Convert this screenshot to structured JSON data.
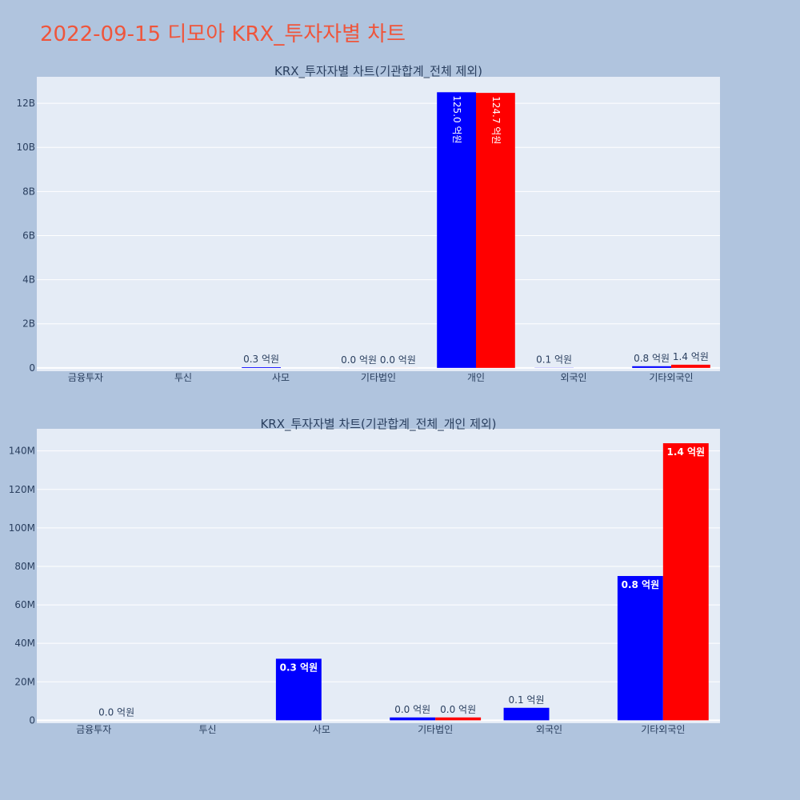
{
  "title": "2022-09-15 디모아 KRX_투자자별 차트",
  "colors": {
    "title": "#ef553b",
    "background": "#b0c4de",
    "plot_bg": "#e5ecf6",
    "grid": "#ffffff",
    "series_buy": "#0000ff",
    "series_sell": "#ff0000",
    "text": "#2a3f5f"
  },
  "chart_data": [
    {
      "type": "bar",
      "title": "KRX_투자자별 차트(기관합계_전체 제외)",
      "categories": [
        "금융투자",
        "투신",
        "사모",
        "기타법인",
        "개인",
        "외국인",
        "기타외국인"
      ],
      "ylim": [
        -150000000,
        13200000000
      ],
      "yticks": [
        0,
        2000000000,
        4000000000,
        6000000000,
        8000000000,
        10000000000,
        12000000000
      ],
      "ytick_labels": [
        "0",
        "2B",
        "4B",
        "6B",
        "8B",
        "10B",
        "12B"
      ],
      "grid": true,
      "series": [
        {
          "values": [
            0,
            0,
            32000000,
            1500000,
            12500000000,
            6500000,
            75000000
          ],
          "labels": [
            "",
            "",
            "0.3 억원",
            "0.0 억원",
            "125.0 억원",
            "0.1 억원",
            "0.8 억원"
          ]
        },
        {
          "values": [
            0,
            0,
            0,
            1500000,
            12470000000,
            0,
            144000000
          ],
          "labels": [
            "",
            "",
            "",
            "0.0 억원",
            "124.7 억원",
            "",
            "1.4 억원"
          ]
        }
      ]
    },
    {
      "type": "bar",
      "title": "KRX_투자자별 차트(기관합계_전체_개인 제외)",
      "categories": [
        "금융투자",
        "투신",
        "사모",
        "기타법인",
        "외국인",
        "기타외국인"
      ],
      "ylim": [
        -1500000,
        151500000
      ],
      "yticks": [
        0,
        20000000,
        40000000,
        60000000,
        80000000,
        100000000,
        120000000,
        140000000
      ],
      "ytick_labels": [
        "0",
        "20M",
        "40M",
        "60M",
        "80M",
        "100M",
        "120M",
        "140M"
      ],
      "grid": true,
      "series": [
        {
          "values": [
            0,
            0,
            32000000,
            1500000,
            6500000,
            75000000
          ],
          "labels": [
            "",
            "",
            "0.3 억원",
            "0.0 억원",
            "0.1 억원",
            "0.8 억원"
          ]
        },
        {
          "values": [
            0,
            0,
            0,
            1500000,
            0,
            144000000
          ],
          "labels": [
            "0.0 억원",
            "",
            "",
            "0.0 억원",
            "",
            "1.4 억원"
          ]
        }
      ]
    }
  ]
}
